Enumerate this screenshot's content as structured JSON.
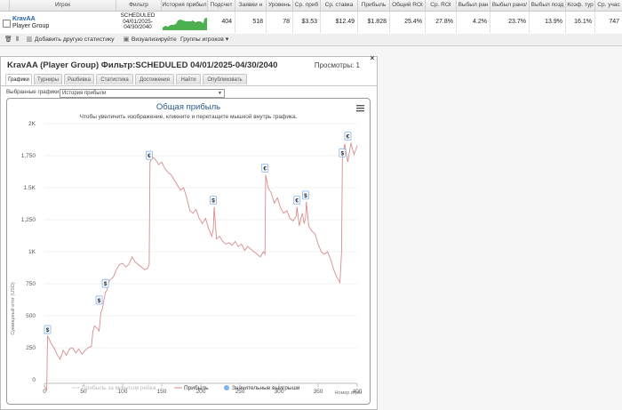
{
  "table": {
    "headers": [
      "Игрок",
      "Фильтр",
      "История прибыл",
      "Подсчет",
      "Заявки н",
      "Уровень",
      "Ср. приб",
      "Ср. ставка",
      "Прибыль",
      "Общий ROI",
      "Ср. ROI",
      "Выбыл ран",
      "Выбыл рано/",
      "Выбыл позд",
      "Коэф. тур",
      "Ср. учас"
    ],
    "row": {
      "player_name": "KravAA",
      "player_group": "Player Group",
      "filter_lines": [
        "SCHEDULED",
        "04/01/2025-",
        "04/30/2040"
      ],
      "count": "404",
      "entries": "518",
      "level": "78",
      "avg_profit": "$3.53",
      "avg_stake": "$12.49",
      "profit": "$1.828",
      "total_roi": "25.4%",
      "avg_roi": "27.8%",
      "early_exit": "4.2%",
      "early_exit2": "23.7%",
      "late_exit": "13.9%",
      "coef": "16.1%",
      "avg_part": "747"
    }
  },
  "toolbar": {
    "add_stat": "Добавить другую статистику",
    "visualize": "Визуализируйте",
    "groups": "Группы игроков"
  },
  "panel": {
    "title": "KravAA (Player Group) Фильтр:SCHEDULED 04/01/2025-04/30/2040",
    "views": "Просмотры: 1",
    "tabs": [
      "Графики",
      "Турниры",
      "Разбивка",
      "Статистика",
      "Достижения",
      "Найти",
      "Опубликовать"
    ],
    "selected_label": "Выбранные графики:",
    "selected_value": "История прибыли"
  },
  "chart_data": {
    "type": "line",
    "title": "Общая прибыль",
    "subtitle": "Чтобы увеличить изображение, кликните и перетащите мышкой внутрь графика.",
    "ylabel": "Суммарный итог (USD)",
    "xlabel": "Номер игры",
    "xlim": [
      0,
      400
    ],
    "ylim": [
      0,
      2000
    ],
    "x_ticks": [
      "0",
      "50",
      "100",
      "150",
      "200",
      "250",
      "300",
      "350",
      "400"
    ],
    "y_ticks": [
      "0",
      "250",
      "500",
      "750",
      "1K",
      "1,250",
      "1.5K",
      "1,750",
      "2K"
    ],
    "legend": [
      "Прибыль за минусом рейка",
      "Прибыль",
      "Значительные выигрыши"
    ],
    "series": [
      {
        "name": "Прибыль",
        "x": [
          0,
          3,
          4,
          6,
          8,
          12,
          16,
          20,
          24,
          28,
          32,
          36,
          40,
          44,
          48,
          52,
          56,
          60,
          62,
          64,
          68,
          70,
          72,
          74,
          76,
          78,
          80,
          82,
          84,
          88,
          92,
          96,
          100,
          104,
          108,
          112,
          116,
          120,
          124,
          128,
          132,
          134,
          135,
          138,
          142,
          146,
          150,
          154,
          158,
          162,
          166,
          170,
          174,
          178,
          182,
          186,
          190,
          194,
          198,
          202,
          206,
          210,
          214,
          216,
          217,
          220,
          224,
          228,
          232,
          236,
          240,
          244,
          248,
          252,
          256,
          260,
          264,
          268,
          272,
          276,
          280,
          282,
          283,
          286,
          290,
          294,
          298,
          302,
          306,
          310,
          314,
          318,
          322,
          323,
          326,
          328,
          330,
          332,
          334,
          335,
          338,
          342,
          346,
          350,
          354,
          358,
          362,
          366,
          370,
          374,
          378,
          380,
          381,
          384,
          388,
          392,
          394,
          396,
          400
        ],
        "values": [
          -50,
          -80,
          340,
          320,
          290,
          250,
          200,
          160,
          230,
          190,
          240,
          250,
          210,
          240,
          200,
          230,
          250,
          260,
          380,
          420,
          400,
          380,
          520,
          550,
          620,
          680,
          700,
          760,
          780,
          800,
          860,
          900,
          910,
          880,
          900,
          960,
          920,
          900,
          880,
          860,
          870,
          900,
          1700,
          1740,
          1720,
          1680,
          1700,
          1650,
          1620,
          1600,
          1560,
          1520,
          1480,
          1500,
          1420,
          1320,
          1300,
          1330,
          1260,
          1220,
          1260,
          1180,
          1120,
          1180,
          1350,
          1100,
          1120,
          1080,
          1060,
          1070,
          1050,
          1080,
          1040,
          1060,
          1010,
          1040,
          1020,
          1000,
          980,
          960,
          1000,
          980,
          1600,
          1500,
          1460,
          1380,
          1420,
          1340,
          1300,
          1320,
          1260,
          1240,
          1280,
          1350,
          1200,
          1260,
          1300,
          1220,
          1260,
          1390,
          1200,
          1160,
          1140,
          1060,
          1000,
          980,
          1000,
          940,
          860,
          800,
          760,
          1000,
          1720,
          1840,
          1700,
          1850,
          1800,
          1760,
          1830
        ]
      }
    ],
    "big_wins": [
      {
        "x": 4,
        "y": 340,
        "symbol": "$"
      },
      {
        "x": 70,
        "y": 570,
        "symbol": "$"
      },
      {
        "x": 78,
        "y": 700,
        "symbol": "$"
      },
      {
        "x": 134,
        "y": 1700,
        "symbol": "€"
      },
      {
        "x": 216,
        "y": 1350,
        "symbol": "$"
      },
      {
        "x": 282,
        "y": 1600,
        "symbol": "€"
      },
      {
        "x": 323,
        "y": 1350,
        "symbol": "€"
      },
      {
        "x": 334,
        "y": 1390,
        "symbol": "$"
      },
      {
        "x": 381,
        "y": 1720,
        "symbol": "$"
      },
      {
        "x": 388,
        "y": 1850,
        "symbol": "€"
      }
    ],
    "colors": {
      "line": "#d98c8c",
      "rake_line": "#d6d6d6",
      "wins": "#7cb5ec"
    }
  }
}
